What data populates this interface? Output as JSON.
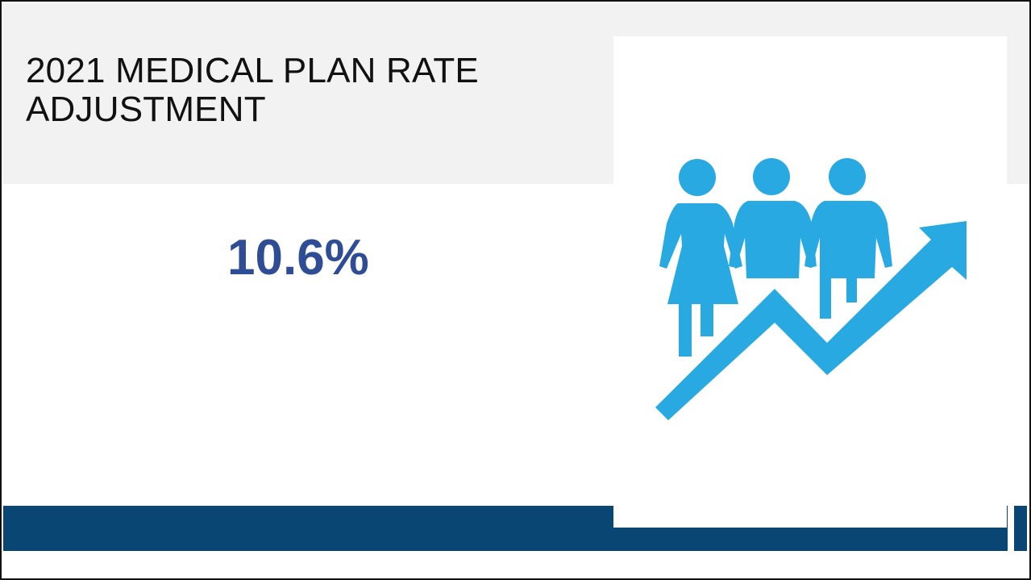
{
  "slide": {
    "title_line1": "2021 MEDICAL PLAN RATE",
    "title_line2": "ADJUSTMENT",
    "rate_value": "10.6%"
  },
  "illustration": {
    "icon": "people-growth-arrow-icon",
    "color": "#29a9e1"
  },
  "colors": {
    "header_band": "#f2f2f2",
    "value_text": "#2e4d94",
    "footer_bar": "#0a4674"
  }
}
